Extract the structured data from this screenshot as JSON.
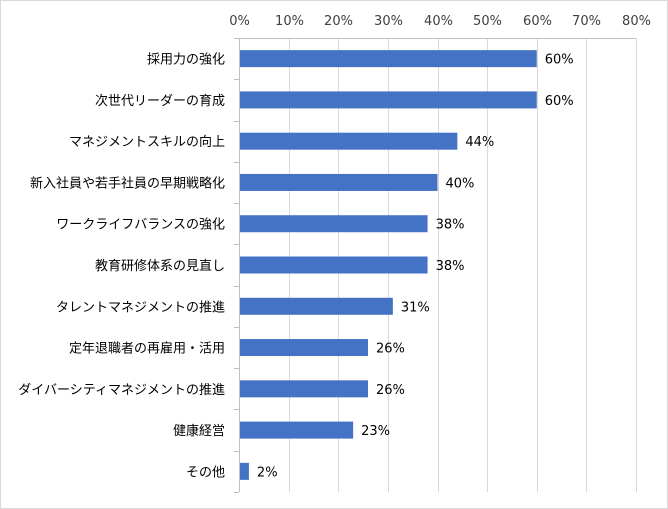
{
  "chart_data": {
    "type": "bar",
    "orientation": "horizontal",
    "categories": [
      "採用力の強化",
      "次世代リーダーの育成",
      "マネジメントスキルの向上",
      "新入社員や若手社員の早期戦略化",
      "ワークライフバランスの強化",
      "教育研修体系の見直し",
      "タレントマネジメントの推進",
      "定年退職者の再雇用・活用",
      "ダイバーシティマネジメントの推進",
      "健康経営",
      "その他"
    ],
    "values": [
      60,
      60,
      44,
      40,
      38,
      38,
      31,
      26,
      26,
      23,
      2
    ],
    "data_labels": [
      "60%",
      "60%",
      "44%",
      "40%",
      "38%",
      "38%",
      "31%",
      "26%",
      "26%",
      "23%",
      "2%"
    ],
    "xlim": [
      0,
      80
    ],
    "xticks": [
      0,
      10,
      20,
      30,
      40,
      50,
      60,
      70,
      80
    ],
    "xtick_labels": [
      "0%",
      "10%",
      "20%",
      "30%",
      "40%",
      "50%",
      "60%",
      "70%",
      "80%"
    ],
    "axis_position": "top",
    "grid": true,
    "legend": "none",
    "title": "",
    "xlabel": "",
    "ylabel": "",
    "colors": {
      "bar": "#4472C4",
      "grid": "#d9d9d9",
      "axis": "#bfbfbf"
    }
  }
}
